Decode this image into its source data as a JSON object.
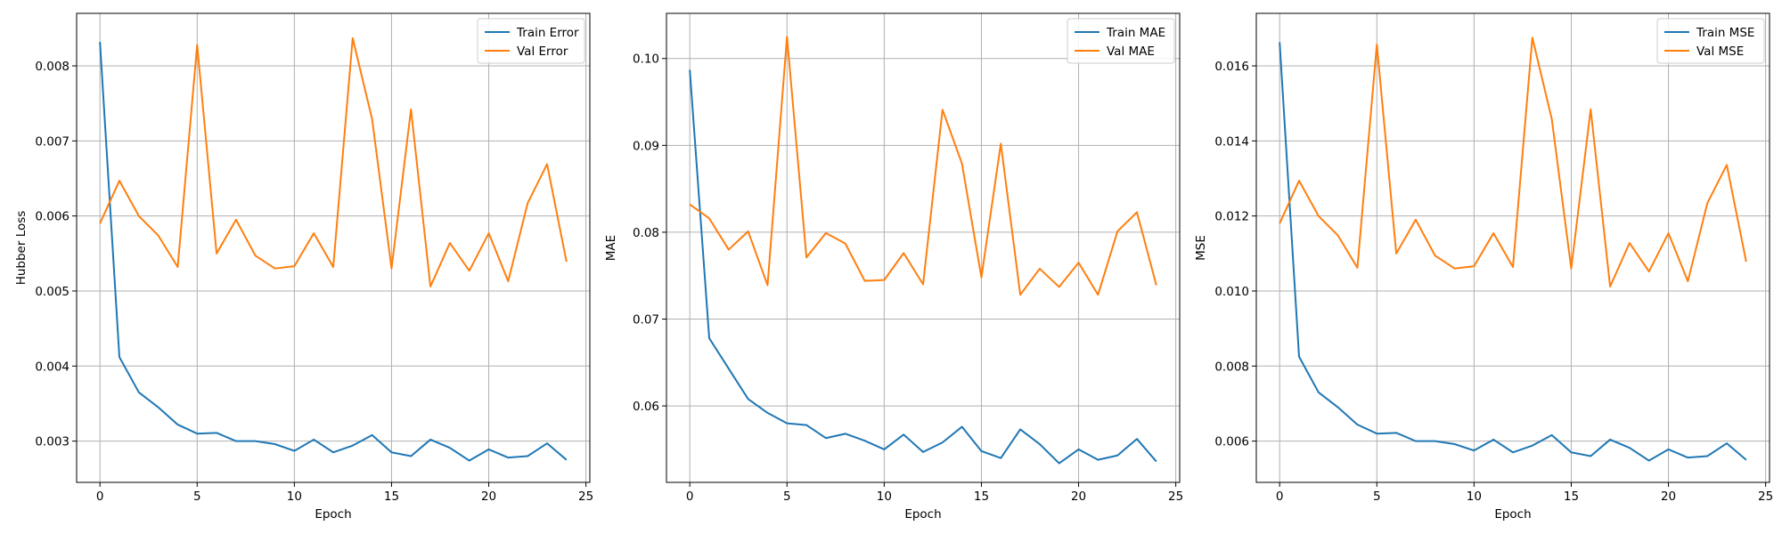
{
  "colors": {
    "train": "#1f77b4",
    "val": "#ff7f0e",
    "grid": "#b0b0b0",
    "axis": "#000000"
  },
  "chart_data": [
    {
      "type": "line",
      "xlabel": "Epoch",
      "ylabel": "Hubber Loss",
      "xlim": [
        -1.2,
        25.2
      ],
      "ylim": [
        0.00245,
        0.0087
      ],
      "xticks": [
        0,
        5,
        10,
        15,
        20,
        25
      ],
      "yticks": [
        0.003,
        0.004,
        0.005,
        0.006,
        0.007,
        0.008
      ],
      "ytick_labels": [
        "0.003",
        "0.004",
        "0.005",
        "0.006",
        "0.007",
        "0.008"
      ],
      "grid": true,
      "legend_position": "top-right",
      "x": [
        0,
        1,
        2,
        3,
        4,
        5,
        6,
        7,
        8,
        9,
        10,
        11,
        12,
        13,
        14,
        15,
        16,
        17,
        18,
        19,
        20,
        21,
        22,
        23,
        24
      ],
      "series": [
        {
          "name": "Train Error",
          "color": "#1f77b4",
          "values": [
            0.00832,
            0.00412,
            0.00365,
            0.00345,
            0.00322,
            0.0031,
            0.00311,
            0.003,
            0.003,
            0.00296,
            0.00287,
            0.00302,
            0.00285,
            0.00294,
            0.00308,
            0.00285,
            0.0028,
            0.00302,
            0.00291,
            0.00274,
            0.00289,
            0.00278,
            0.0028,
            0.00297,
            0.00275
          ]
        },
        {
          "name": "Val Error",
          "color": "#ff7f0e",
          "values": [
            0.0059,
            0.00647,
            0.006,
            0.00574,
            0.00532,
            0.00828,
            0.0055,
            0.00595,
            0.00547,
            0.0053,
            0.00533,
            0.00577,
            0.00532,
            0.00837,
            0.00729,
            0.0053,
            0.00742,
            0.00506,
            0.00564,
            0.00527,
            0.00577,
            0.00513,
            0.00617,
            0.00669,
            0.00539
          ]
        }
      ]
    },
    {
      "type": "line",
      "xlabel": "Epoch",
      "ylabel": "MAE",
      "xlim": [
        -1.2,
        25.2
      ],
      "ylim": [
        0.0512,
        0.1052
      ],
      "xticks": [
        0,
        5,
        10,
        15,
        20,
        25
      ],
      "yticks": [
        0.06,
        0.07,
        0.08,
        0.09,
        0.1
      ],
      "ytick_labels": [
        "0.06",
        "0.07",
        "0.08",
        "0.09",
        "0.10"
      ],
      "grid": true,
      "legend_position": "top-right",
      "x": [
        0,
        1,
        2,
        3,
        4,
        5,
        6,
        7,
        8,
        9,
        10,
        11,
        12,
        13,
        14,
        15,
        16,
        17,
        18,
        19,
        20,
        21,
        22,
        23,
        24
      ],
      "series": [
        {
          "name": "Train MAE",
          "color": "#1f77b4",
          "values": [
            0.0987,
            0.0678,
            0.0643,
            0.0608,
            0.0592,
            0.058,
            0.0578,
            0.0563,
            0.0568,
            0.056,
            0.055,
            0.0567,
            0.0547,
            0.0558,
            0.0576,
            0.0548,
            0.054,
            0.0573,
            0.0556,
            0.0534,
            0.055,
            0.0538,
            0.0543,
            0.0562,
            0.0536
          ]
        },
        {
          "name": "Val MAE",
          "color": "#ff7f0e",
          "values": [
            0.0832,
            0.0816,
            0.078,
            0.0801,
            0.0739,
            0.1025,
            0.0771,
            0.0799,
            0.0787,
            0.0744,
            0.0745,
            0.0776,
            0.074,
            0.0941,
            0.0879,
            0.0748,
            0.0902,
            0.0728,
            0.0758,
            0.0737,
            0.0765,
            0.0728,
            0.0801,
            0.0823,
            0.0739
          ]
        }
      ]
    },
    {
      "type": "line",
      "xlabel": "Epoch",
      "ylabel": "MSE",
      "xlim": [
        -1.2,
        25.2
      ],
      "ylim": [
        0.0049,
        0.0174
      ],
      "xticks": [
        0,
        5,
        10,
        15,
        20,
        25
      ],
      "yticks": [
        0.006,
        0.008,
        0.01,
        0.012,
        0.014,
        0.016
      ],
      "ytick_labels": [
        "0.006",
        "0.008",
        "0.010",
        "0.012",
        "0.014",
        "0.016"
      ],
      "grid": true,
      "legend_position": "top-right",
      "x": [
        0,
        1,
        2,
        3,
        4,
        5,
        6,
        7,
        8,
        9,
        10,
        11,
        12,
        13,
        14,
        15,
        16,
        17,
        18,
        19,
        20,
        21,
        22,
        23,
        24
      ],
      "series": [
        {
          "name": "Train MSE",
          "color": "#1f77b4",
          "values": [
            0.01663,
            0.00825,
            0.0073,
            0.0069,
            0.00644,
            0.0062,
            0.00622,
            0.006,
            0.006,
            0.00592,
            0.00575,
            0.00604,
            0.0057,
            0.00588,
            0.00616,
            0.0057,
            0.0056,
            0.00604,
            0.00582,
            0.00548,
            0.00578,
            0.00556,
            0.0056,
            0.00594,
            0.0055
          ]
        },
        {
          "name": "Val MSE",
          "color": "#ff7f0e",
          "values": [
            0.0118,
            0.01294,
            0.012,
            0.01148,
            0.01062,
            0.01657,
            0.011,
            0.0119,
            0.01094,
            0.0106,
            0.01066,
            0.01154,
            0.01064,
            0.01675,
            0.01458,
            0.0106,
            0.01484,
            0.01012,
            0.01128,
            0.01052,
            0.01154,
            0.01026,
            0.01234,
            0.01336,
            0.01078
          ]
        }
      ]
    }
  ]
}
